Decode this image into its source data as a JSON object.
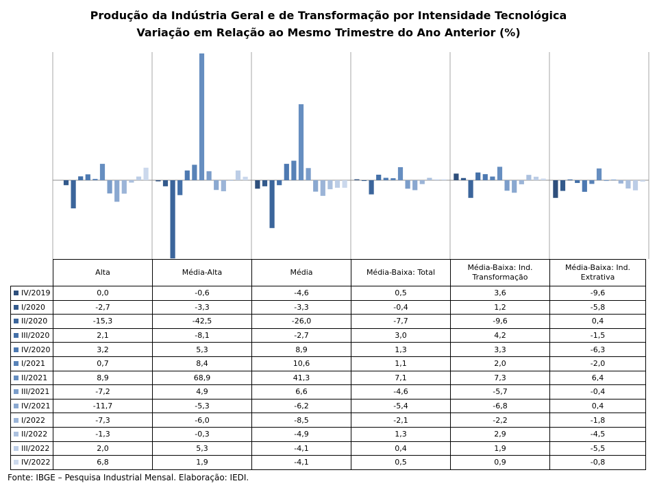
{
  "chart_data": {
    "type": "bar",
    "title": "Produção da Indústria Geral e de Transformação por Intensidade Tecnológica",
    "subtitle": "Variação em Relação ao Mesmo Trimestre do Ano Anterior (%)",
    "categories": [
      "Alta",
      "Média-Alta",
      "Média",
      "Média-Baixa: Total",
      "Média-Baixa: Ind. Transformação",
      "Média-Baixa: Ind. Extrativa"
    ],
    "ylim": [
      -42.5,
      68.9
    ],
    "grid": false,
    "legend_position": "table rows below chart",
    "series": [
      {
        "name": "IV/2019",
        "color": "#2e4f7c",
        "values": [
          0.0,
          -0.6,
          -4.6,
          0.5,
          3.6,
          -9.6
        ]
      },
      {
        "name": "I/2020",
        "color": "#335a8c",
        "values": [
          -2.7,
          -3.3,
          -3.3,
          -0.4,
          1.2,
          -5.8
        ]
      },
      {
        "name": "II/2020",
        "color": "#3b659b",
        "values": [
          -15.3,
          -42.5,
          -26.0,
          -7.7,
          -9.6,
          0.4
        ]
      },
      {
        "name": "III/2020",
        "color": "#4470a8",
        "values": [
          2.1,
          -8.1,
          -2.7,
          3.0,
          4.2,
          -1.5
        ]
      },
      {
        "name": "IV/2020",
        "color": "#4d79b1",
        "values": [
          3.2,
          5.3,
          8.9,
          1.3,
          3.3,
          -6.3
        ]
      },
      {
        "name": "I/2021",
        "color": "#5882b7",
        "values": [
          0.7,
          8.4,
          10.6,
          1.1,
          2.0,
          -2.0
        ]
      },
      {
        "name": "II/2021",
        "color": "#668ec0",
        "values": [
          8.9,
          68.9,
          41.3,
          7.1,
          7.3,
          6.4
        ]
      },
      {
        "name": "III/2021",
        "color": "#7b9dca",
        "values": [
          -7.2,
          4.9,
          6.6,
          -4.6,
          -5.7,
          -0.4
        ]
      },
      {
        "name": "IV/2021",
        "color": "#8aa8d0",
        "values": [
          -11.7,
          -5.3,
          -6.2,
          -5.4,
          -6.8,
          0.4
        ]
      },
      {
        "name": "I/2022",
        "color": "#9bb4d7",
        "values": [
          -7.3,
          -6.0,
          -8.5,
          -2.1,
          -2.2,
          -1.8
        ]
      },
      {
        "name": "II/2022",
        "color": "#abc0de",
        "values": [
          -1.3,
          -0.3,
          -4.9,
          1.3,
          2.9,
          -4.5
        ]
      },
      {
        "name": "III/2022",
        "color": "#bccde6",
        "values": [
          2.0,
          5.3,
          -4.1,
          0.4,
          1.9,
          -5.5
        ]
      },
      {
        "name": "IV/2022",
        "color": "#cbd8ec",
        "values": [
          6.8,
          1.9,
          -4.1,
          0.5,
          0.9,
          -0.8
        ]
      }
    ]
  },
  "table": {
    "headers": [
      "Alta",
      "Média-Alta",
      "Média",
      "Média-Baixa: Total",
      "Média-Baixa: Ind. Transformação",
      "Média-Baixa: Ind. Extrativa"
    ],
    "rows": [
      {
        "label": "IV/2019",
        "cells": [
          "0,0",
          "-0,6",
          "-4,6",
          "0,5",
          "3,6",
          "-9,6"
        ]
      },
      {
        "label": "I/2020",
        "cells": [
          "-2,7",
          "-3,3",
          "-3,3",
          "-0,4",
          "1,2",
          "-5,8"
        ]
      },
      {
        "label": "II/2020",
        "cells": [
          "-15,3",
          "-42,5",
          "-26,0",
          "-7,7",
          "-9,6",
          "0,4"
        ]
      },
      {
        "label": "III/2020",
        "cells": [
          "2,1",
          "-8,1",
          "-2,7",
          "3,0",
          "4,2",
          "-1,5"
        ]
      },
      {
        "label": "IV/2020",
        "cells": [
          "3,2",
          "5,3",
          "8,9",
          "1,3",
          "3,3",
          "-6,3"
        ]
      },
      {
        "label": "I/2021",
        "cells": [
          "0,7",
          "8,4",
          "10,6",
          "1,1",
          "2,0",
          "-2,0"
        ]
      },
      {
        "label": "II/2021",
        "cells": [
          "8,9",
          "68,9",
          "41,3",
          "7,1",
          "7,3",
          "6,4"
        ]
      },
      {
        "label": "III/2021",
        "cells": [
          "-7,2",
          "4,9",
          "6,6",
          "-4,6",
          "-5,7",
          "-0,4"
        ]
      },
      {
        "label": "IV/2021",
        "cells": [
          "-11,7",
          "-5,3",
          "-6,2",
          "-5,4",
          "-6,8",
          "0,4"
        ]
      },
      {
        "label": "I/2022",
        "cells": [
          "-7,3",
          "-6,0",
          "-8,5",
          "-2,1",
          "-2,2",
          "-1,8"
        ]
      },
      {
        "label": "II/2022",
        "cells": [
          "-1,3",
          "-0,3",
          "-4,9",
          "1,3",
          "2,9",
          "-4,5"
        ]
      },
      {
        "label": "III/2022",
        "cells": [
          "2,0",
          "5,3",
          "-4,1",
          "0,4",
          "1,9",
          "-5,5"
        ]
      },
      {
        "label": "IV/2022",
        "cells": [
          "6,8",
          "1,9",
          "-4,1",
          "0,5",
          "0,9",
          "-0,8"
        ]
      }
    ]
  },
  "source": "Fonte: IBGE – Pesquisa Industrial Mensal. Elaboração: IEDI."
}
